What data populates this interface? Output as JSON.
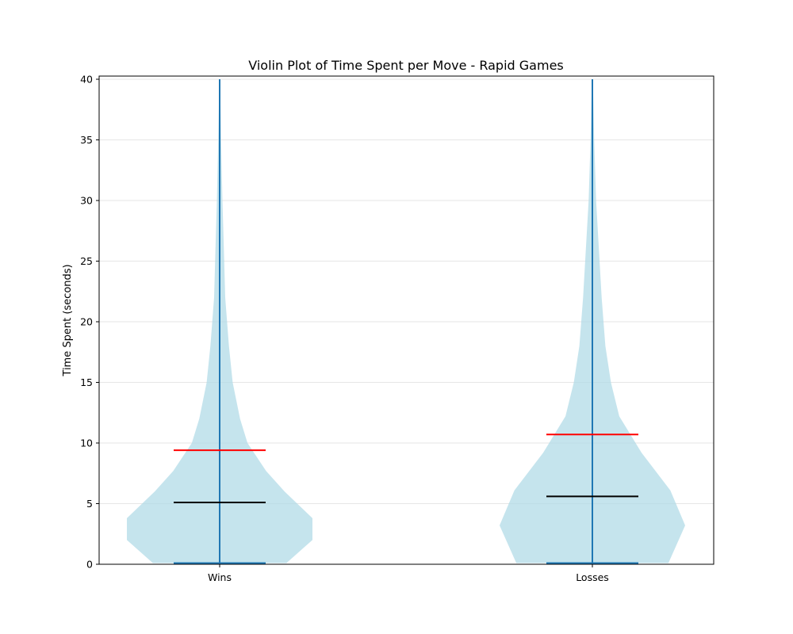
{
  "chart_data": {
    "type": "violin",
    "title": "Violin Plot of Time Spent per Move - Rapid Games",
    "ylabel": "Time Spent (seconds)",
    "xlabel": "",
    "ylim": [
      0,
      40
    ],
    "yticks": [
      0,
      5,
      10,
      15,
      20,
      25,
      30,
      35,
      40
    ],
    "grid": "y",
    "colors": {
      "violin_fill": "#add8e6",
      "extrema_lines": "#1f77b4",
      "mean_line": "#ff0000",
      "median_line": "#000000"
    },
    "categories": [
      "Wins",
      "Losses"
    ],
    "series": [
      {
        "category": "Wins",
        "mean": 9.4,
        "median": 5.1,
        "min": 0.1,
        "max": 40,
        "density": [
          [
            0.1,
            0.72
          ],
          [
            2.0,
            1.0
          ],
          [
            3.8,
            1.0
          ],
          [
            6.0,
            0.7
          ],
          [
            7.7,
            0.5
          ],
          [
            10.0,
            0.3
          ],
          [
            12.0,
            0.22
          ],
          [
            15.0,
            0.14
          ],
          [
            18.0,
            0.1
          ],
          [
            22.0,
            0.06
          ],
          [
            26.0,
            0.045
          ],
          [
            30.0,
            0.03
          ],
          [
            35.0,
            0.015
          ],
          [
            40.0,
            0.003
          ]
        ]
      },
      {
        "category": "Losses",
        "mean": 10.7,
        "median": 5.6,
        "min": 0.1,
        "max": 40,
        "density": [
          [
            0.1,
            0.82
          ],
          [
            3.2,
            1.0
          ],
          [
            6.1,
            0.84
          ],
          [
            9.2,
            0.53
          ],
          [
            12.2,
            0.29
          ],
          [
            15.0,
            0.2
          ],
          [
            18.0,
            0.14
          ],
          [
            22.0,
            0.1
          ],
          [
            26.0,
            0.07
          ],
          [
            30.0,
            0.04
          ],
          [
            35.0,
            0.02
          ],
          [
            40.0,
            0.005
          ]
        ]
      }
    ]
  }
}
